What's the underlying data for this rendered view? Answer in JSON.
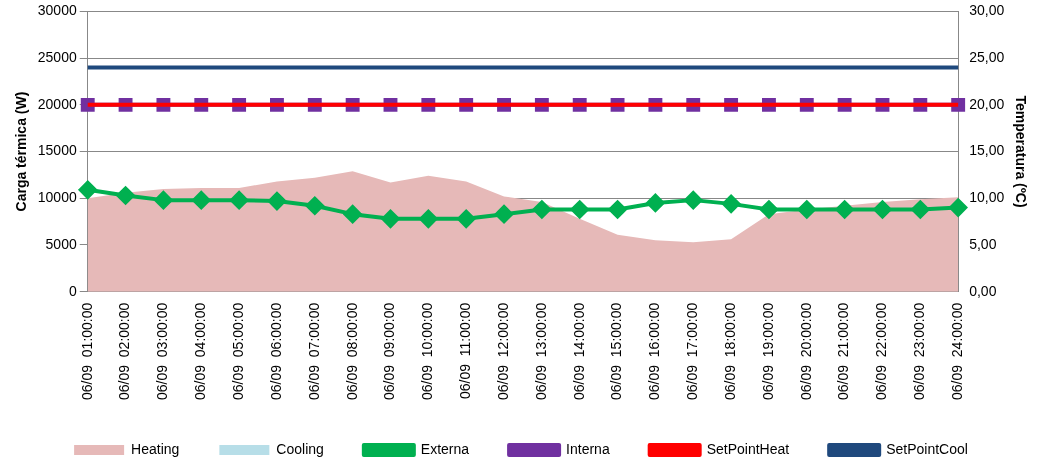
{
  "chart_data": {
    "type": "area",
    "ylabel": "Carga térmica (W)",
    "y2label": "Temperatura (ºC)",
    "categories": [
      "06/09  01:00:00",
      "06/09  02:00:00",
      "06/09  03:00:00",
      "06/09  04:00:00",
      "06/09  05:00:00",
      "06/09  06:00:00",
      "06/09  07:00:00",
      "06/09  08:00:00",
      "06/09  09:00:00",
      "06/09  10:00:00",
      "06/09  11:00:00",
      "06/09  12:00:00",
      "06/09  13:00:00",
      "06/09  14:00:00",
      "06/09  15:00:00",
      "06/09  16:00:00",
      "06/09  17:00:00",
      "06/09  18:00:00",
      "06/09  19:00:00",
      "06/09  20:00:00",
      "06/09  21:00:00",
      "06/09  22:00:00",
      "06/09  23:00:00",
      "06/09  24:00:00"
    ],
    "series": [
      {
        "name": "Heating",
        "type": "area",
        "color": "#e6b9b8",
        "values": [
          10000,
          10600,
          11000,
          11100,
          11100,
          11800,
          12200,
          12900,
          11700,
          12400,
          11800,
          10200,
          9600,
          7800,
          6100,
          5500,
          5300,
          5600,
          8300,
          8800,
          9200,
          9600,
          9900,
          10100
        ]
      },
      {
        "name": "Cooling",
        "type": "area",
        "color": "#b7dee8",
        "values": [
          null,
          null,
          null,
          null,
          null,
          null,
          null,
          null,
          null,
          null,
          null,
          null,
          null,
          null,
          null,
          null,
          null,
          null,
          null,
          null,
          null,
          null,
          null,
          null
        ]
      },
      {
        "name": "Externa",
        "type": "line",
        "axis": "y2",
        "marker": "diamond",
        "color": "#00b050",
        "values": [
          10.9,
          10.3,
          9.8,
          9.8,
          9.8,
          9.7,
          9.2,
          8.3,
          7.8,
          7.8,
          7.8,
          8.3,
          8.8,
          8.8,
          8.8,
          9.5,
          9.8,
          9.4,
          8.8,
          8.8,
          8.8,
          8.8,
          8.8,
          9.0
        ]
      },
      {
        "name": "Interna",
        "type": "line",
        "axis": "y2",
        "marker": "square",
        "color": "#7030a0",
        "values": [
          20,
          20,
          20,
          20,
          20,
          20,
          20,
          20,
          20,
          20,
          20,
          20,
          20,
          20,
          20,
          20,
          20,
          20,
          20,
          20,
          20,
          20,
          20,
          20
        ]
      },
      {
        "name": "SetPointHeat",
        "type": "line",
        "axis": "y2",
        "marker": "none",
        "color": "#ff0000",
        "values": [
          20,
          20,
          20,
          20,
          20,
          20,
          20,
          20,
          20,
          20,
          20,
          20,
          20,
          20,
          20,
          20,
          20,
          20,
          20,
          20,
          20,
          20,
          20,
          20
        ]
      },
      {
        "name": "SetPointCool",
        "type": "line",
        "axis": "y2",
        "marker": "none",
        "color": "#1f497d",
        "values": [
          24,
          24,
          24,
          24,
          24,
          24,
          24,
          24,
          24,
          24,
          24,
          24,
          24,
          24,
          24,
          24,
          24,
          24,
          24,
          24,
          24,
          24,
          24,
          24
        ]
      }
    ],
    "ylim": [
      0,
      30000
    ],
    "yticks": [
      0,
      5000,
      10000,
      15000,
      20000,
      25000,
      30000
    ],
    "y2lim": [
      0,
      30
    ],
    "y2ticks": [
      {
        "value": 0,
        "label": "0,00"
      },
      {
        "value": 5,
        "label": "5,00"
      },
      {
        "value": 10,
        "label": "10,00"
      },
      {
        "value": 15,
        "label": "15,00"
      },
      {
        "value": 20,
        "label": "20,00"
      },
      {
        "value": 25,
        "label": "25,00"
      },
      {
        "value": 30,
        "label": "30,00"
      }
    ],
    "grid": "y",
    "legend": "bottom",
    "line_style": "solid"
  }
}
